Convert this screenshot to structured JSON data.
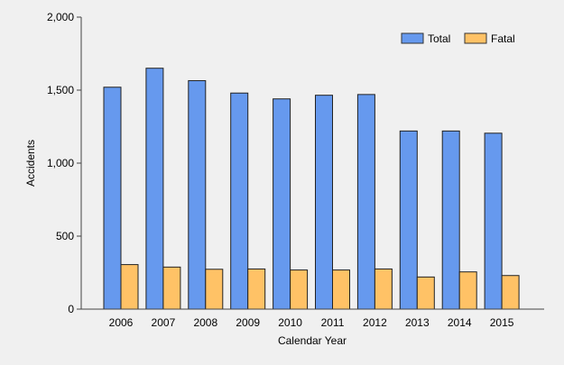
{
  "chart_data": {
    "type": "bar",
    "categories": [
      "2006",
      "2007",
      "2008",
      "2009",
      "2010",
      "2011",
      "2012",
      "2013",
      "2014",
      "2015"
    ],
    "series": [
      {
        "name": "Total",
        "color": "#6699ee",
        "values": [
          1520,
          1650,
          1565,
          1480,
          1440,
          1465,
          1470,
          1220,
          1220,
          1205
        ]
      },
      {
        "name": "Fatal",
        "color": "#ffc266",
        "values": [
          305,
          288,
          273,
          275,
          268,
          268,
          275,
          220,
          255,
          230
        ]
      }
    ],
    "title": "",
    "xlabel": "Calendar Year",
    "ylabel": "Accidents",
    "ylim": [
      0,
      2000
    ],
    "yticks": [
      {
        "value": 0,
        "label": "0"
      },
      {
        "value": 500,
        "label": "500"
      },
      {
        "value": 1000,
        "label": "1,000"
      },
      {
        "value": 1500,
        "label": "1,500"
      },
      {
        "value": 2000,
        "label": "2,000"
      }
    ],
    "grid": false,
    "legend_position": "top-right"
  }
}
